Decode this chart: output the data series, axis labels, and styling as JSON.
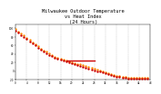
{
  "title": "Milwaukee Outdoor Temperature\nvs Heat Index\n(24 Hours)",
  "title_fontsize": 3.8,
  "background_color": "#ffffff",
  "xlim": [
    0,
    48
  ],
  "ylim": [
    -20,
    110
  ],
  "grid_color": "#bbbbbb",
  "temp_color": "#cc0000",
  "heat_color": "#ff8800",
  "dark_color": "#220000",
  "temp_x": [
    0,
    1,
    2,
    3,
    4,
    5,
    6,
    7,
    8,
    9,
    10,
    11,
    12,
    13,
    14,
    15,
    16,
    17,
    18,
    19,
    20,
    21,
    22,
    23,
    24,
    25,
    26,
    27,
    28,
    29,
    30,
    31,
    32,
    33,
    34,
    35,
    36,
    37,
    38,
    39,
    40,
    41,
    42,
    43,
    44,
    45,
    46,
    47
  ],
  "temp_y": [
    95,
    90,
    85,
    80,
    75,
    70,
    65,
    60,
    55,
    50,
    45,
    42,
    38,
    35,
    30,
    28,
    26,
    24,
    22,
    20,
    18,
    16,
    14,
    12,
    10,
    8,
    6,
    4,
    2,
    0,
    -2,
    -4,
    -6,
    -8,
    -10,
    -12,
    -13,
    -14,
    -15,
    -16,
    -17,
    -17,
    -17,
    -17,
    -17,
    -17,
    -17,
    -17
  ],
  "heat_x": [
    0,
    1,
    2,
    3,
    4,
    5,
    6,
    7,
    8,
    9,
    10,
    11,
    12,
    13,
    14,
    15,
    16,
    17,
    18,
    19,
    20,
    21,
    22,
    23,
    24,
    25,
    26,
    27,
    28,
    29,
    30,
    31,
    32,
    33,
    34,
    35,
    36,
    37,
    38,
    39,
    40,
    41,
    42,
    43,
    44,
    45,
    46,
    47
  ],
  "heat_y": [
    98,
    93,
    88,
    83,
    78,
    73,
    68,
    63,
    58,
    53,
    48,
    45,
    41,
    38,
    33,
    31,
    29,
    27,
    25,
    23,
    21,
    19,
    17,
    15,
    13,
    11,
    9,
    7,
    5,
    3,
    1,
    -1,
    -3,
    -5,
    -7,
    -9,
    -11,
    -12,
    -13,
    -14,
    -15,
    -15,
    -15,
    -15,
    -15,
    -15,
    -15,
    -15
  ],
  "flat_x_start": 18,
  "flat_x_end": 28,
  "flat_y": 24,
  "xtick_positions": [
    0,
    4,
    8,
    12,
    16,
    20,
    24,
    28,
    32,
    36,
    40,
    44,
    48
  ],
  "xtick_labels": [
    "0",
    "4",
    "8",
    "12",
    "16",
    "20",
    "24",
    "28",
    "32",
    "36",
    "40",
    "44",
    "48"
  ],
  "ytick_positions": [
    -20,
    0,
    20,
    40,
    60,
    80,
    100
  ],
  "ytick_labels": [
    "-20",
    "0",
    "20",
    "40",
    "60",
    "80",
    "100"
  ],
  "dot_size": 3.0,
  "grid_positions": [
    0,
    4,
    8,
    12,
    16,
    20,
    24,
    28,
    32,
    36,
    40,
    44,
    48
  ]
}
